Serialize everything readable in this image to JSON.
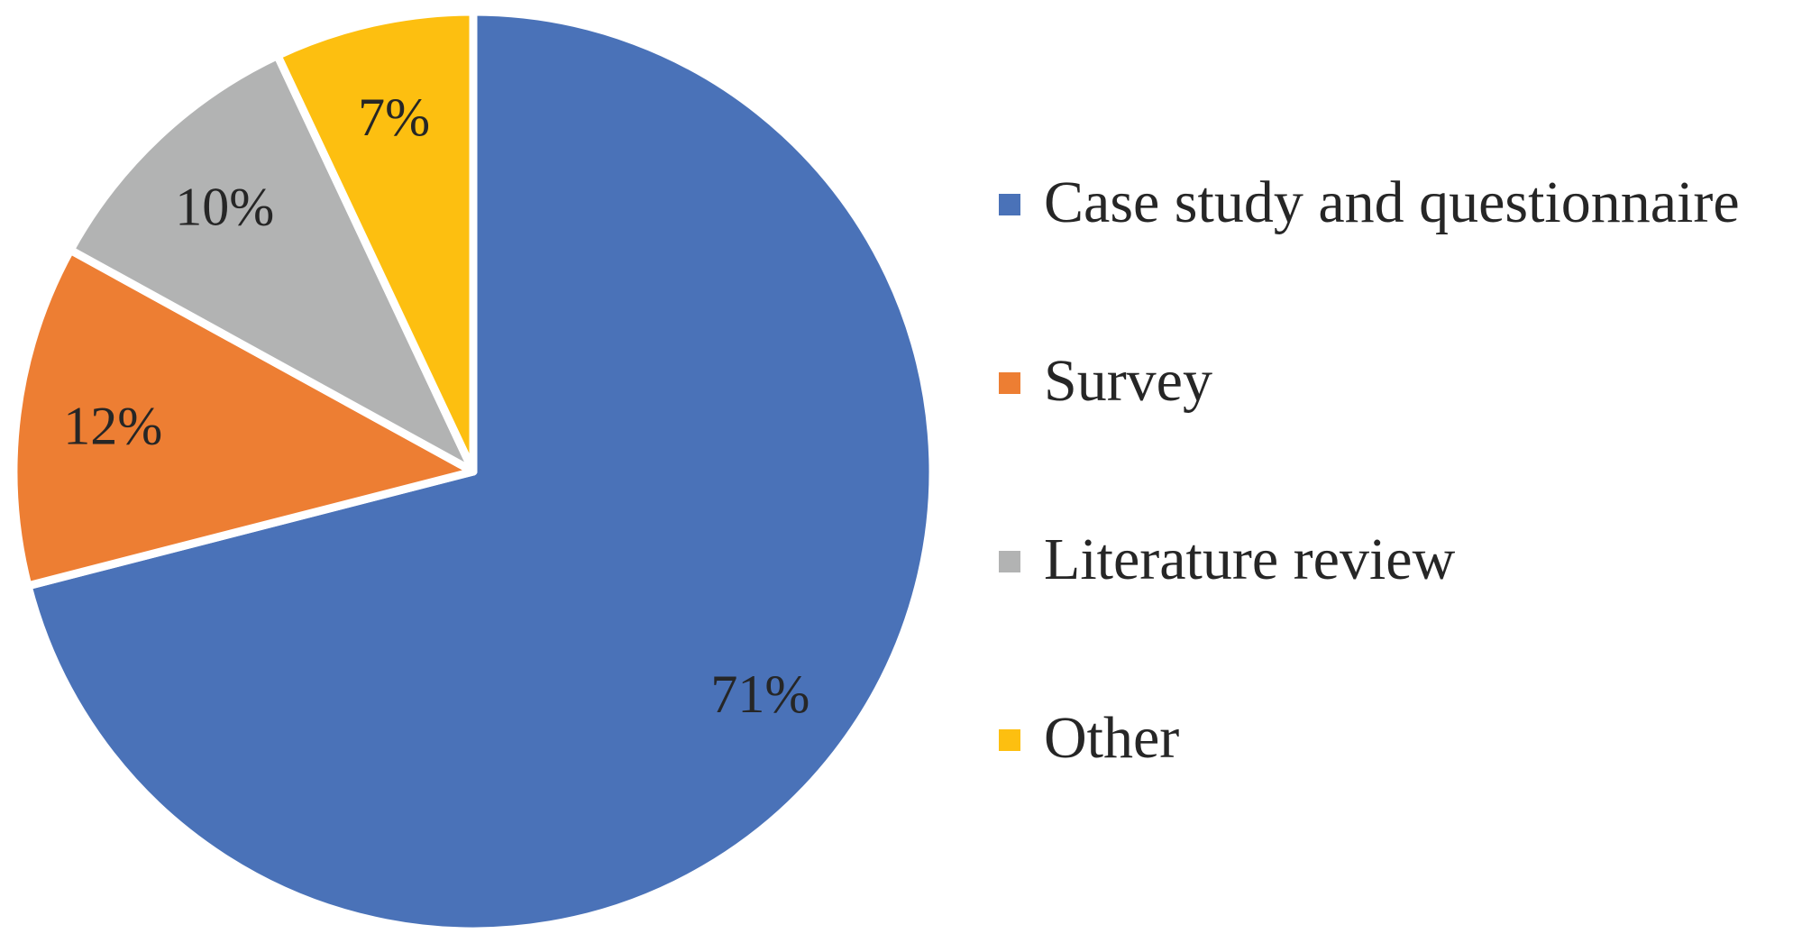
{
  "chart_data": {
    "type": "pie",
    "title": "",
    "categories": [
      "Case study and questionnaire",
      "Survey",
      "Literature review",
      "Other"
    ],
    "values": [
      71,
      12,
      10,
      7
    ],
    "labels": [
      "71%",
      "12%",
      "10%",
      "7%"
    ],
    "colors": [
      "#4a72b8",
      "#ed7e33",
      "#b2b3b3",
      "#fdbf10"
    ],
    "start_angle_deg": 0,
    "direction": "clockwise",
    "legend_position": "right",
    "slice_border_color": "#ffffff"
  }
}
